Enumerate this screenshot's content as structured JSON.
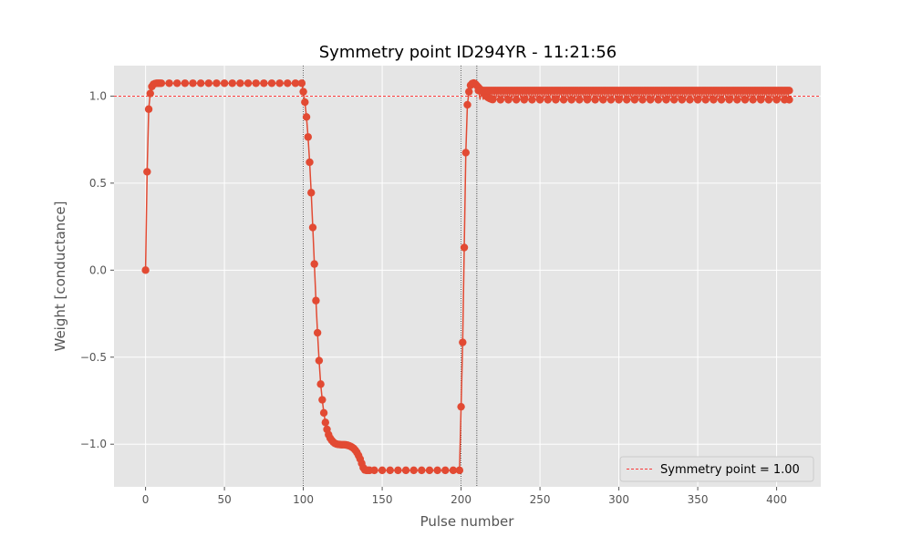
{
  "chart_data": {
    "type": "line",
    "title": "Symmetry point ID294YR - 11:21:56",
    "xlabel": "Pulse number",
    "ylabel": "Weight [conductance]",
    "xlim": [
      -20,
      428
    ],
    "ylim": [
      -1.245,
      1.175
    ],
    "xticks": [
      0,
      50,
      100,
      150,
      200,
      250,
      300,
      350,
      400
    ],
    "yticks": [
      -1.0,
      -0.5,
      0.0,
      0.5,
      1.0
    ],
    "xtick_labels": [
      "0",
      "50",
      "100",
      "150",
      "200",
      "250",
      "300",
      "350",
      "400"
    ],
    "ytick_labels": [
      "−1.0",
      "−0.5",
      "0.0",
      "0.5",
      "1.0"
    ],
    "grid": true,
    "vertical_lines": [
      100,
      200,
      210
    ],
    "symmetry_point": 1.0,
    "legend": {
      "label": "Symmetry point = 1.00",
      "position": "lower-right"
    },
    "series_color": "#E24A33",
    "hline_color": "#FF0000",
    "background_color": "#E5E5E5",
    "series": [
      {
        "name": "",
        "x": [
          0,
          1,
          2,
          3,
          4,
          5,
          6,
          7,
          8,
          9,
          10,
          15,
          20,
          25,
          30,
          35,
          40,
          45,
          50,
          55,
          60,
          65,
          70,
          75,
          80,
          85,
          90,
          95,
          99,
          100,
          101,
          102,
          103,
          104,
          105,
          106,
          107,
          108,
          109,
          110,
          111,
          112,
          113,
          114,
          115,
          116,
          117,
          118,
          119,
          120,
          121,
          122,
          123,
          124,
          125,
          126,
          127,
          128,
          129,
          130,
          131,
          132,
          133,
          134,
          135,
          136,
          137,
          138,
          139,
          140,
          141,
          142,
          145,
          150,
          155,
          160,
          165,
          170,
          175,
          180,
          185,
          190,
          195,
          199,
          200,
          201,
          202,
          203,
          204,
          205,
          206,
          207,
          208,
          209,
          210,
          211,
          212,
          213,
          214,
          215,
          216,
          217,
          218,
          219,
          220,
          225,
          230,
          235,
          240,
          245,
          250,
          255,
          260,
          265,
          270,
          275,
          280,
          285,
          290,
          295,
          300,
          305,
          310,
          315,
          320,
          325,
          330,
          335,
          340,
          345,
          350,
          355,
          360,
          365,
          370,
          375,
          380,
          385,
          390,
          395,
          400,
          405,
          408
        ],
        "y": [
          0.0,
          0.565,
          0.925,
          1.015,
          1.055,
          1.068,
          1.072,
          1.074,
          1.074,
          1.074,
          1.074,
          1.074,
          1.074,
          1.074,
          1.074,
          1.074,
          1.074,
          1.074,
          1.074,
          1.074,
          1.074,
          1.074,
          1.074,
          1.074,
          1.074,
          1.074,
          1.074,
          1.074,
          1.074,
          1.025,
          0.965,
          0.88,
          0.765,
          0.62,
          0.445,
          0.245,
          0.035,
          -0.175,
          -0.36,
          -0.52,
          -0.655,
          -0.745,
          -0.82,
          -0.875,
          -0.915,
          -0.945,
          -0.965,
          -0.978,
          -0.988,
          -0.995,
          -0.999,
          -1.001,
          -1.002,
          -1.003,
          -1.003,
          -1.003,
          -1.004,
          -1.006,
          -1.009,
          -1.013,
          -1.018,
          -1.025,
          -1.035,
          -1.048,
          -1.065,
          -1.085,
          -1.11,
          -1.135,
          -1.148,
          -1.15,
          -1.15,
          -1.15,
          -1.15,
          -1.15,
          -1.15,
          -1.15,
          -1.15,
          -1.15,
          -1.15,
          -1.15,
          -1.15,
          -1.15,
          -1.15,
          -1.15,
          -0.785,
          -0.415,
          0.13,
          0.675,
          0.95,
          1.025,
          1.062,
          1.072,
          1.075,
          1.07,
          1.06,
          1.05,
          1.04,
          1.03,
          1.02,
          1.01,
          1.0,
          0.992,
          0.987,
          0.983,
          0.98,
          0.979,
          0.979,
          0.979,
          0.979,
          0.979,
          0.979,
          0.979,
          0.979,
          0.979,
          0.979,
          0.979,
          0.979,
          0.979,
          0.979,
          0.979,
          0.979,
          0.979,
          0.979,
          0.979,
          0.979,
          0.979,
          0.979,
          0.979,
          0.979,
          0.979,
          0.979,
          0.979,
          0.979,
          0.979,
          0.979,
          0.979,
          0.979,
          0.979,
          0.979,
          0.979,
          0.979,
          0.979,
          0.979
        ],
        "upper_band": {
          "x_start": 211,
          "x_end": 408,
          "y": 1.032
        }
      }
    ]
  }
}
